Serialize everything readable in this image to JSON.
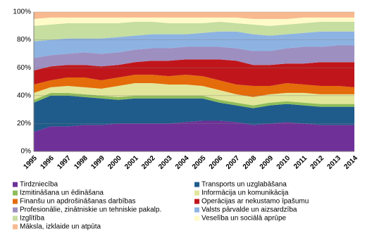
{
  "chart_data": {
    "type": "stacked_area",
    "categories": [
      "1995",
      "1996",
      "1997",
      "1998",
      "1999",
      "2000",
      "2001",
      "2002",
      "2003",
      "2004",
      "2005",
      "2006",
      "2007",
      "2008",
      "2009",
      "2010",
      "2011",
      "2012",
      "2013",
      "2014"
    ],
    "ylim": [
      0,
      100
    ],
    "yticks": [
      {
        "value": 0,
        "label": "0%"
      },
      {
        "value": 20,
        "label": "20%"
      },
      {
        "value": 40,
        "label": "40%"
      },
      {
        "value": 60,
        "label": "60%"
      },
      {
        "value": 80,
        "label": "80%"
      },
      {
        "value": 100,
        "label": "100%"
      }
    ],
    "grid": true,
    "series": [
      {
        "name": "Tirdzniecība",
        "color": "#6f3198",
        "values": [
          14,
          18,
          18,
          19,
          19,
          20,
          20,
          20,
          20,
          21,
          22,
          22,
          21,
          19,
          20,
          21,
          20,
          19,
          19,
          19
        ]
      },
      {
        "name": "Transports un uzglabāšana",
        "color": "#1f5c8b",
        "values": [
          21,
          22,
          22,
          20,
          19,
          17,
          18,
          18,
          18,
          17,
          16,
          13,
          12,
          12,
          13,
          13,
          13,
          13,
          13,
          13
        ]
      },
      {
        "name": "Izmitināšana un ēdināšana",
        "color": "#8fbc5a",
        "values": [
          2,
          2,
          2,
          2,
          2,
          2,
          2,
          2,
          2,
          2,
          2,
          2,
          2,
          2,
          2,
          2,
          2,
          2,
          2,
          2
        ]
      },
      {
        "name": "Informācija un komunikācija",
        "color": "#e2e69a",
        "values": [
          5,
          4,
          5,
          5,
          5,
          8,
          9,
          9,
          8,
          8,
          7,
          7,
          6,
          6,
          6,
          6,
          7,
          7,
          7,
          7
        ]
      },
      {
        "name": "Finanšu un apdrošināšanas darbības",
        "color": "#e46c0a",
        "values": [
          6,
          5,
          6,
          7,
          6,
          6,
          6,
          6,
          6,
          7,
          7,
          7,
          7,
          8,
          6,
          7,
          6,
          6,
          6,
          5
        ]
      },
      {
        "name": "Operācijas ar nekustamo īpašumu",
        "color": "#c0161b",
        "values": [
          10,
          10,
          9,
          9,
          10,
          9,
          9,
          10,
          11,
          11,
          12,
          15,
          17,
          15,
          15,
          14,
          15,
          17,
          17,
          18
        ]
      },
      {
        "name": "Profesionālie, zinātniskie un tehniskie pakalp.",
        "color": "#9e8fc1",
        "values": [
          9,
          8,
          8,
          9,
          9,
          9,
          9,
          9,
          9,
          9,
          9,
          9,
          9,
          10,
          10,
          11,
          12,
          11,
          12,
          12
        ]
      },
      {
        "name": "Valsts pārvalde un aizsardzība",
        "color": "#8db3e2",
        "values": [
          12,
          11,
          11,
          10,
          11,
          11,
          10,
          10,
          10,
          9,
          10,
          11,
          12,
          12,
          11,
          10,
          10,
          11,
          10,
          10
        ]
      },
      {
        "name": "Izglītība",
        "color": "#c6dea0",
        "values": [
          11,
          11,
          11,
          11,
          11,
          10,
          10,
          9,
          8,
          8,
          7,
          7,
          6,
          7,
          7,
          7,
          7,
          7,
          7,
          7
        ]
      },
      {
        "name": "Veselība un sociālā aprūpe",
        "color": "#fffbc8",
        "values": [
          5,
          5,
          4,
          4,
          4,
          4,
          3,
          3,
          4,
          4,
          4,
          3,
          4,
          4,
          5,
          4,
          4,
          3,
          3,
          3
        ]
      },
      {
        "name": "Māksla, izklaide un atpūta",
        "color": "#f8b98e",
        "values": [
          5,
          4,
          4,
          4,
          4,
          4,
          4,
          4,
          4,
          4,
          4,
          4,
          4,
          5,
          5,
          5,
          4,
          4,
          4,
          4
        ]
      }
    ]
  }
}
